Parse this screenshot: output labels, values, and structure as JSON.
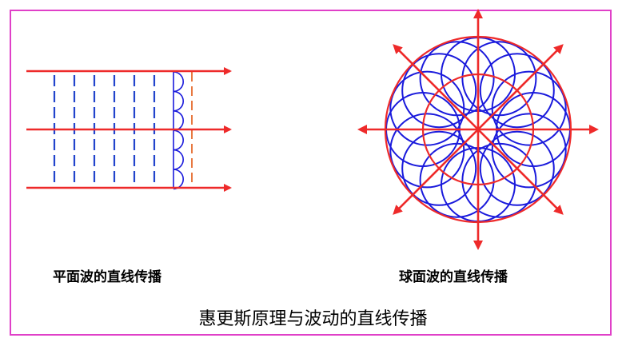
{
  "captions": {
    "plane": "平面波的直线传播",
    "spherical": "球面波的直线传播"
  },
  "title": "惠更斯原理与波动的直线传播",
  "colors": {
    "border": "#e040c8",
    "ray": "#ee2a2a",
    "wavelet": "#1a1adc",
    "wavefront_dash": "#2244cc",
    "front_line": "#e87840"
  }
}
